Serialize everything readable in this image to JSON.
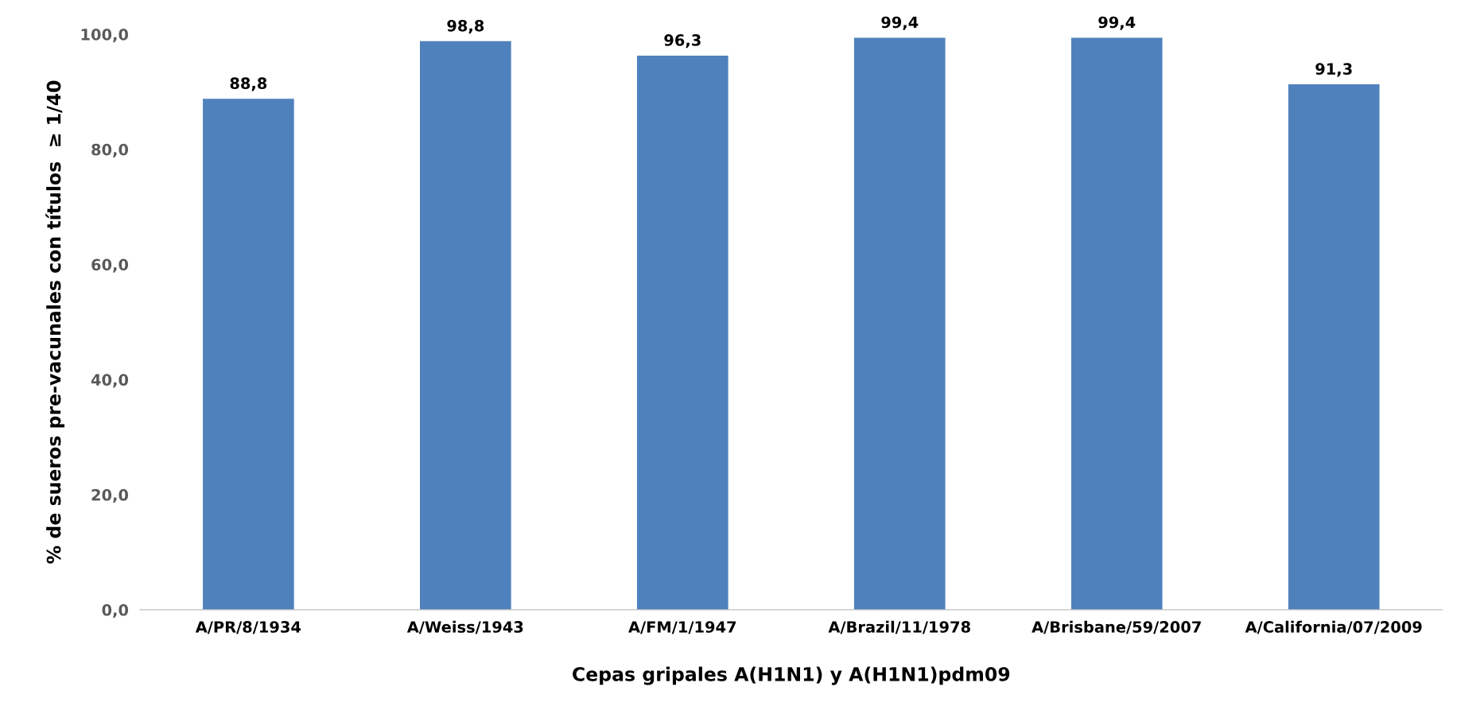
{
  "chart_data": {
    "type": "bar",
    "xlabel": "Cepas gripales A(H1N1) y A(H1N1)pdm09",
    "ylabel": "% de sueros pre-vacunales con títulos  ≥ 1/40",
    "categories": [
      "A/PR/8/1934",
      "A/Weiss/1943",
      "A/FM/1/1947",
      "A/Brazil/11/1978",
      "A/Brisbane/59/2007",
      "A/California/07/2009"
    ],
    "values": [
      88.8,
      98.8,
      96.3,
      99.4,
      99.4,
      91.3
    ],
    "value_labels": [
      "88,8",
      "98,8",
      "96,3",
      "99,4",
      "99,4",
      "91,3"
    ],
    "color": "#4f81bd",
    "ylim": [
      0,
      100
    ],
    "yticks": [
      {
        "value": 0,
        "label": "0,0"
      },
      {
        "value": 20,
        "label": "20,0"
      },
      {
        "value": 40,
        "label": "40,0"
      },
      {
        "value": 60,
        "label": "60,0"
      },
      {
        "value": 80,
        "label": "80,0"
      },
      {
        "value": 100,
        "label": "100,0"
      }
    ],
    "grid": false
  }
}
